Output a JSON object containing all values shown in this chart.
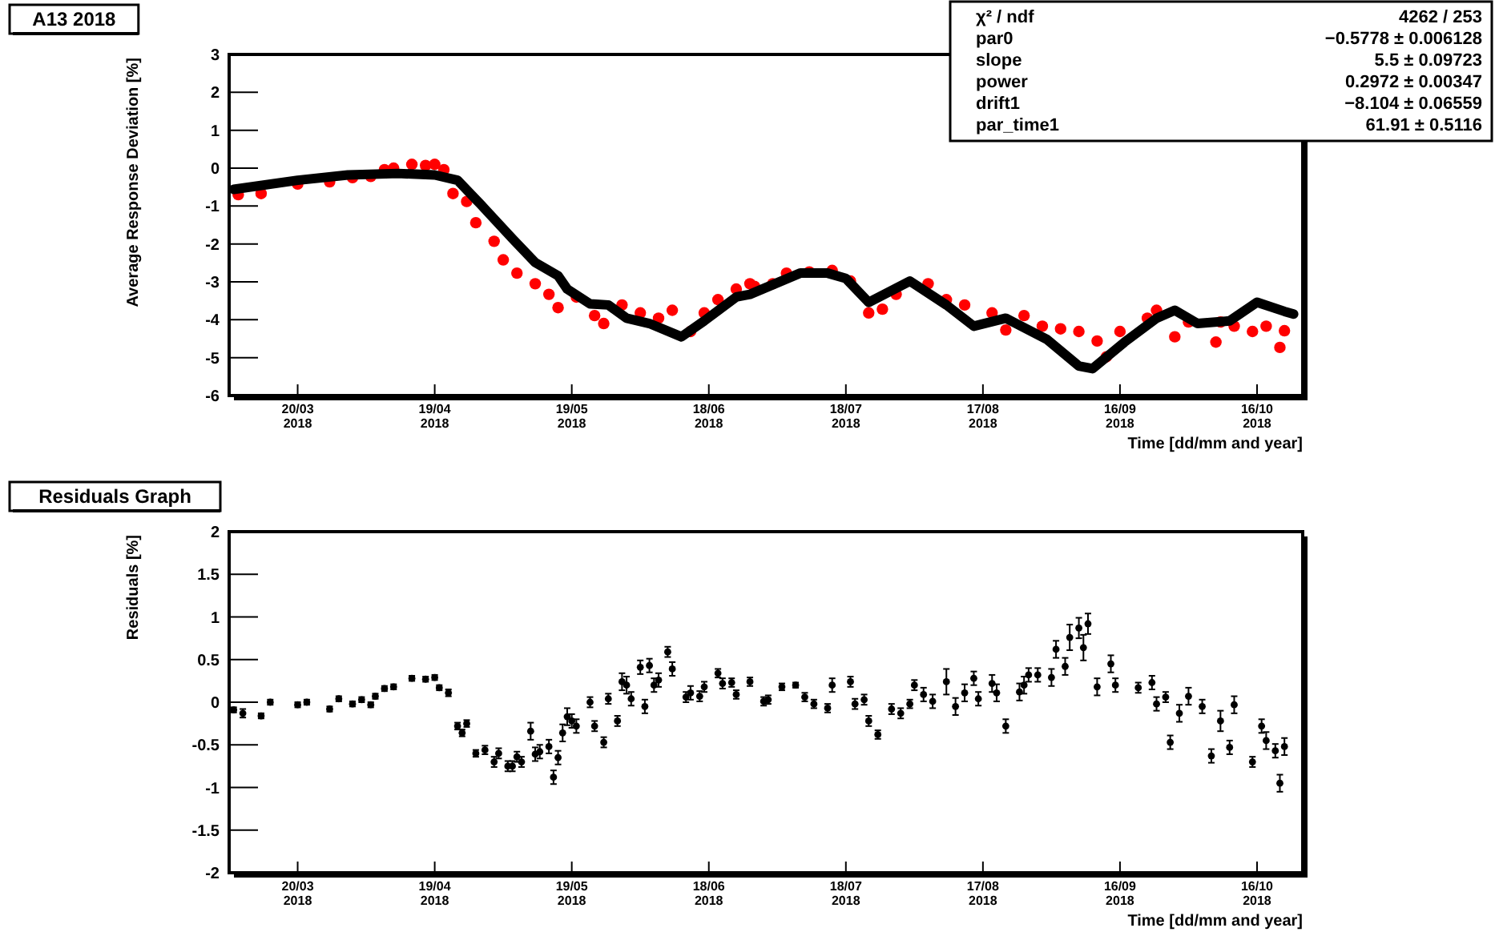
{
  "chart_data": [
    {
      "type": "scatter",
      "title": "A13 2018",
      "xlabel": "Time [dd/mm and year]",
      "ylabel": "Average Response Deviation [%]",
      "annotations": [
        "χ² / ndf",
        "4262 / 253",
        "par0",
        "−0.5778 ± 0.006128",
        "slope",
        "5.5 ± 0.09723",
        "power",
        "0.2972 ± 0.00347",
        "drift1",
        "−8.104 ± 0.06559",
        "par_time1",
        "61.91 ± 0.5116"
      ],
      "xlim": [
        "2018-03-05",
        "2018-10-26"
      ],
      "xticks": [
        {
          "value": "2018-03-20",
          "label": "20/03 2018"
        },
        {
          "value": "2018-04-19",
          "label": "19/04 2018"
        },
        {
          "value": "2018-05-19",
          "label": "19/05 2018"
        },
        {
          "value": "2018-06-18",
          "label": "18/06 2018"
        },
        {
          "value": "2018-07-18",
          "label": "18/07 2018"
        },
        {
          "value": "2018-08-17",
          "label": "17/08 2018"
        },
        {
          "value": "2018-09-16",
          "label": "16/09 2018"
        },
        {
          "value": "2018-10-16",
          "label": "16/10 2018"
        }
      ],
      "ylim": [
        -6,
        3
      ],
      "yticks": [
        -6,
        -5,
        -4,
        -3,
        -2,
        -1,
        0,
        1,
        2,
        3
      ],
      "series": [
        {
          "marker": "circle",
          "color": "#ff0000",
          "x": [
            "2018-03-07",
            "2018-03-12",
            "2018-03-20",
            "2018-03-27",
            "2018-04-01",
            "2018-04-05",
            "2018-04-08",
            "2018-04-10",
            "2018-04-14",
            "2018-04-17",
            "2018-04-19",
            "2018-04-21",
            "2018-04-23",
            "2018-04-26",
            "2018-04-28",
            "2018-05-02",
            "2018-05-04",
            "2018-05-07",
            "2018-05-11",
            "2018-05-14",
            "2018-05-16",
            "2018-05-20",
            "2018-05-24",
            "2018-05-26",
            "2018-05-30",
            "2018-06-03",
            "2018-06-07",
            "2018-06-10",
            "2018-06-14",
            "2018-06-17",
            "2018-06-20",
            "2018-06-24",
            "2018-06-27",
            "2018-06-28",
            "2018-07-02",
            "2018-07-05",
            "2018-07-10",
            "2018-07-15",
            "2018-07-19",
            "2018-07-23",
            "2018-07-26",
            "2018-07-29",
            "2018-08-05",
            "2018-08-09",
            "2018-08-13",
            "2018-08-19",
            "2018-08-22",
            "2018-08-26",
            "2018-08-30",
            "2018-09-03",
            "2018-09-07",
            "2018-09-11",
            "2018-09-13",
            "2018-09-16",
            "2018-09-22",
            "2018-09-24",
            "2018-09-28",
            "2018-10-01",
            "2018-10-07",
            "2018-10-08",
            "2018-10-11",
            "2018-10-15",
            "2018-10-18",
            "2018-10-21",
            "2018-10-22"
          ],
          "values": [
            -0.7,
            -0.67,
            -0.42,
            -0.36,
            -0.25,
            -0.22,
            -0.04,
            0.0,
            0.1,
            0.07,
            0.1,
            -0.04,
            -0.67,
            -0.88,
            -1.44,
            -1.93,
            -2.42,
            -2.77,
            -3.05,
            -3.33,
            -3.68,
            -3.4,
            -3.89,
            -4.1,
            -3.61,
            -3.82,
            -3.96,
            -3.75,
            -4.31,
            -3.82,
            -3.47,
            -3.19,
            -3.05,
            -3.12,
            -3.05,
            -2.77,
            -2.74,
            -2.7,
            -2.98,
            -3.82,
            -3.72,
            -3.33,
            -3.05,
            -3.47,
            -3.61,
            -3.82,
            -4.27,
            -3.89,
            -4.17,
            -4.24,
            -4.31,
            -4.56,
            -4.98,
            -4.31,
            -3.96,
            -3.75,
            -4.45,
            -4.06,
            -4.59,
            -4.06,
            -4.17,
            -4.31,
            -4.17,
            -4.73,
            -4.29
          ]
        },
        {
          "type": "line",
          "color": "#000000",
          "x": [
            "2018-03-06",
            "2018-03-20",
            "2018-03-31",
            "2018-04-11",
            "2018-04-19",
            "2018-04-24",
            "2018-04-29",
            "2018-05-06",
            "2018-05-11",
            "2018-05-16",
            "2018-05-18",
            "2018-05-23",
            "2018-05-27",
            "2018-05-31",
            "2018-06-05",
            "2018-06-12",
            "2018-06-17",
            "2018-06-24",
            "2018-06-27",
            "2018-07-08",
            "2018-07-14",
            "2018-07-18",
            "2018-07-23",
            "2018-08-01",
            "2018-08-09",
            "2018-08-15",
            "2018-08-22",
            "2018-08-31",
            "2018-09-07",
            "2018-09-10",
            "2018-09-17",
            "2018-09-24",
            "2018-09-28",
            "2018-10-03",
            "2018-10-10",
            "2018-10-16",
            "2018-10-22",
            "2018-10-24"
          ],
          "values": [
            -0.56,
            -0.32,
            -0.18,
            -0.14,
            -0.18,
            -0.32,
            -0.95,
            -1.86,
            -2.49,
            -2.84,
            -3.19,
            -3.58,
            -3.61,
            -3.96,
            -4.1,
            -4.45,
            -4.03,
            -3.4,
            -3.33,
            -2.77,
            -2.77,
            -2.91,
            -3.54,
            -2.98,
            -3.61,
            -4.17,
            -3.96,
            -4.52,
            -5.22,
            -5.29,
            -4.59,
            -3.96,
            -3.75,
            -4.1,
            -4.03,
            -3.54,
            -3.78,
            -3.85
          ]
        }
      ]
    },
    {
      "type": "scatter",
      "title": "Residuals Graph",
      "xlabel": "Time [dd/mm and year]",
      "ylabel": "Residuals [%]",
      "marker": "circle",
      "xlim": [
        "2018-03-05",
        "2018-10-26"
      ],
      "xticks": [
        {
          "value": "2018-03-20",
          "label": "20/03 2018"
        },
        {
          "value": "2018-04-19",
          "label": "19/04 2018"
        },
        {
          "value": "2018-05-19",
          "label": "19/05 2018"
        },
        {
          "value": "2018-06-18",
          "label": "18/06 2018"
        },
        {
          "value": "2018-07-18",
          "label": "18/07 2018"
        },
        {
          "value": "2018-08-17",
          "label": "17/08 2018"
        },
        {
          "value": "2018-09-16",
          "label": "16/09 2018"
        },
        {
          "value": "2018-10-16",
          "label": "16/10 2018"
        }
      ],
      "ylim": [
        -2,
        2
      ],
      "yticks": [
        -2,
        -1.5,
        -1,
        -0.5,
        0,
        0.5,
        1,
        1.5,
        2
      ],
      "series": [
        {
          "color": "#000000",
          "x": [
            "2018-03-06",
            "2018-03-08",
            "2018-03-12",
            "2018-03-14",
            "2018-03-20",
            "2018-03-22",
            "2018-03-27",
            "2018-03-29",
            "2018-04-01",
            "2018-04-03",
            "2018-04-05",
            "2018-04-06",
            "2018-04-08",
            "2018-04-10",
            "2018-04-14",
            "2018-04-17",
            "2018-04-19",
            "2018-04-20",
            "2018-04-22",
            "2018-04-24",
            "2018-04-25",
            "2018-04-26",
            "2018-04-28",
            "2018-04-30",
            "2018-05-02",
            "2018-05-03",
            "2018-05-05",
            "2018-05-06",
            "2018-05-07",
            "2018-05-08",
            "2018-05-10",
            "2018-05-11",
            "2018-05-12",
            "2018-05-14",
            "2018-05-15",
            "2018-05-16",
            "2018-05-17",
            "2018-05-18",
            "2018-05-19",
            "2018-05-20",
            "2018-05-23",
            "2018-05-24",
            "2018-05-26",
            "2018-05-27",
            "2018-05-29",
            "2018-05-30",
            "2018-05-31",
            "2018-06-01",
            "2018-06-03",
            "2018-06-04",
            "2018-06-05",
            "2018-06-06",
            "2018-06-07",
            "2018-06-09",
            "2018-06-10",
            "2018-06-13",
            "2018-06-14",
            "2018-06-16",
            "2018-06-17",
            "2018-06-20",
            "2018-06-21",
            "2018-06-23",
            "2018-06-24",
            "2018-06-27",
            "2018-06-30",
            "2018-07-01",
            "2018-07-04",
            "2018-07-07",
            "2018-07-09",
            "2018-07-11",
            "2018-07-14",
            "2018-07-15",
            "2018-07-19",
            "2018-07-20",
            "2018-07-22",
            "2018-07-23",
            "2018-07-25",
            "2018-07-28",
            "2018-07-30",
            "2018-08-01",
            "2018-08-02",
            "2018-08-04",
            "2018-08-06",
            "2018-08-09",
            "2018-08-11",
            "2018-08-13",
            "2018-08-15",
            "2018-08-16",
            "2018-08-19",
            "2018-08-20",
            "2018-08-22",
            "2018-08-25",
            "2018-08-26",
            "2018-08-27",
            "2018-08-29",
            "2018-09-01",
            "2018-09-02",
            "2018-09-04",
            "2018-09-05",
            "2018-09-07",
            "2018-09-08",
            "2018-09-09",
            "2018-09-11",
            "2018-09-14",
            "2018-09-15",
            "2018-09-20",
            "2018-09-23",
            "2018-09-24",
            "2018-09-26",
            "2018-09-27",
            "2018-09-29",
            "2018-10-01",
            "2018-10-04",
            "2018-10-06",
            "2018-10-08",
            "2018-10-10",
            "2018-10-11",
            "2018-10-15",
            "2018-10-17",
            "2018-10-18",
            "2018-10-20",
            "2018-10-21",
            "2018-10-22"
          ],
          "values": [
            -0.09,
            -0.13,
            -0.16,
            0.0,
            -0.03,
            0.0,
            -0.08,
            0.04,
            -0.02,
            0.03,
            -0.03,
            0.07,
            0.16,
            0.18,
            0.28,
            0.27,
            0.29,
            0.17,
            0.11,
            -0.28,
            -0.36,
            -0.25,
            -0.6,
            -0.56,
            -0.7,
            -0.6,
            -0.75,
            -0.75,
            -0.64,
            -0.7,
            -0.34,
            -0.61,
            -0.58,
            -0.52,
            -0.88,
            -0.65,
            -0.36,
            -0.17,
            -0.22,
            -0.28,
            0.0,
            -0.28,
            -0.47,
            0.04,
            -0.22,
            0.24,
            0.2,
            0.04,
            0.41,
            -0.05,
            0.43,
            0.2,
            0.26,
            0.59,
            0.39,
            0.06,
            0.11,
            0.07,
            0.18,
            0.34,
            0.22,
            0.23,
            0.09,
            0.24,
            0.01,
            0.03,
            0.18,
            0.2,
            0.06,
            -0.02,
            -0.07,
            0.2,
            0.24,
            -0.02,
            0.03,
            -0.22,
            -0.38,
            -0.08,
            -0.13,
            -0.02,
            0.2,
            0.09,
            0.01,
            0.24,
            -0.05,
            0.11,
            0.28,
            0.04,
            0.22,
            0.11,
            -0.28,
            0.12,
            0.2,
            0.32,
            0.32,
            0.29,
            0.62,
            0.42,
            0.76,
            0.87,
            0.64,
            0.92,
            0.18,
            0.45,
            0.2,
            0.17,
            0.23,
            -0.02,
            0.06,
            -0.47,
            -0.13,
            0.07,
            -0.05,
            -0.63,
            -0.22,
            -0.53,
            -0.03,
            -0.7,
            -0.28,
            -0.45,
            -0.57,
            -0.95,
            -0.52
          ],
          "errors": [
            0.03,
            0.05,
            0.03,
            0.03,
            0.03,
            0.03,
            0.03,
            0.03,
            0.03,
            0.03,
            0.03,
            0.03,
            0.03,
            0.03,
            0.03,
            0.03,
            0.03,
            0.03,
            0.04,
            0.04,
            0.04,
            0.04,
            0.04,
            0.05,
            0.06,
            0.06,
            0.06,
            0.06,
            0.06,
            0.06,
            0.1,
            0.08,
            0.08,
            0.08,
            0.08,
            0.08,
            0.1,
            0.1,
            0.08,
            0.08,
            0.06,
            0.06,
            0.06,
            0.06,
            0.06,
            0.1,
            0.1,
            0.08,
            0.08,
            0.08,
            0.08,
            0.08,
            0.08,
            0.06,
            0.08,
            0.06,
            0.08,
            0.06,
            0.06,
            0.05,
            0.06,
            0.05,
            0.05,
            0.05,
            0.05,
            0.05,
            0.04,
            0.03,
            0.05,
            0.05,
            0.05,
            0.08,
            0.06,
            0.06,
            0.06,
            0.06,
            0.05,
            0.06,
            0.06,
            0.05,
            0.06,
            0.08,
            0.08,
            0.15,
            0.1,
            0.1,
            0.08,
            0.08,
            0.1,
            0.1,
            0.08,
            0.1,
            0.1,
            0.08,
            0.08,
            0.1,
            0.1,
            0.1,
            0.15,
            0.12,
            0.15,
            0.12,
            0.1,
            0.1,
            0.08,
            0.06,
            0.08,
            0.08,
            0.06,
            0.08,
            0.1,
            0.1,
            0.08,
            0.08,
            0.12,
            0.08,
            0.1,
            0.06,
            0.08,
            0.1,
            0.08,
            0.1,
            0.1
          ]
        }
      ]
    }
  ]
}
